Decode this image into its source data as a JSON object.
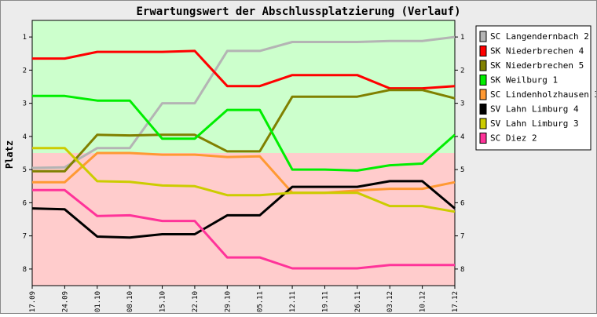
{
  "chart_data": {
    "type": "line",
    "title": "Erwartungswert der Abschlussplatzierung (Verlauf)",
    "ylabel": "Platz",
    "xlabel": "",
    "ylim": [
      0.5,
      8.5
    ],
    "y_inverted": true,
    "y_ticks": [
      1,
      2,
      3,
      4,
      5,
      6,
      7,
      8
    ],
    "categories": [
      "17.09",
      "24.09",
      "01.10",
      "08.10",
      "15.10",
      "22.10",
      "29.10",
      "05.11",
      "12.11",
      "19.11",
      "26.11",
      "03.12",
      "10.12",
      "17.12"
    ],
    "bands": [
      {
        "from": 0.5,
        "to": 4.5,
        "color": "#ccffcc"
      },
      {
        "from": 4.5,
        "to": 8.5,
        "color": "#ffcccc"
      }
    ],
    "legend_position": "right",
    "series": [
      {
        "name": "SC Langendernbach 2",
        "color": "#b4b4b4",
        "values": [
          4.95,
          4.93,
          4.35,
          4.35,
          3.0,
          3.0,
          1.42,
          1.42,
          1.15,
          1.15,
          1.15,
          1.12,
          1.12,
          1.0
        ]
      },
      {
        "name": "SK Niederbrechen 4",
        "color": "#ff0000",
        "values": [
          1.65,
          1.65,
          1.45,
          1.45,
          1.45,
          1.42,
          2.48,
          2.48,
          2.15,
          2.15,
          2.15,
          2.55,
          2.55,
          2.48
        ]
      },
      {
        "name": "SK Niederbrechen 5",
        "color": "#808000",
        "values": [
          5.05,
          5.05,
          3.95,
          3.97,
          3.95,
          3.95,
          4.45,
          4.45,
          2.8,
          2.8,
          2.8,
          2.6,
          2.6,
          2.85
        ]
      },
      {
        "name": "SK Weilburg 1",
        "color": "#00ee00",
        "values": [
          2.78,
          2.78,
          2.92,
          2.92,
          4.07,
          4.07,
          3.2,
          3.2,
          5.0,
          5.0,
          5.03,
          4.87,
          4.82,
          3.95
        ]
      },
      {
        "name": "SC Lindenholzhausen 3",
        "color": "#ff9933",
        "values": [
          5.38,
          5.38,
          4.5,
          4.5,
          4.55,
          4.55,
          4.62,
          4.6,
          5.7,
          5.7,
          5.63,
          5.58,
          5.58,
          5.38
        ]
      },
      {
        "name": "SV Lahn Limburg 4",
        "color": "#000000",
        "values": [
          6.17,
          6.2,
          7.02,
          7.05,
          6.95,
          6.95,
          6.38,
          6.38,
          5.52,
          5.52,
          5.52,
          5.35,
          5.35,
          6.17
        ]
      },
      {
        "name": "SV Lahn Limburg 3",
        "color": "#cccc00",
        "values": [
          4.35,
          4.35,
          5.35,
          5.37,
          5.48,
          5.5,
          5.77,
          5.77,
          5.7,
          5.7,
          5.7,
          6.1,
          6.1,
          6.27
        ]
      },
      {
        "name": "SC Diez 2",
        "color": "#ff3399",
        "values": [
          5.62,
          5.62,
          6.4,
          6.38,
          6.55,
          6.55,
          7.65,
          7.65,
          7.98,
          7.98,
          7.98,
          7.88,
          7.88,
          7.88
        ]
      }
    ]
  }
}
